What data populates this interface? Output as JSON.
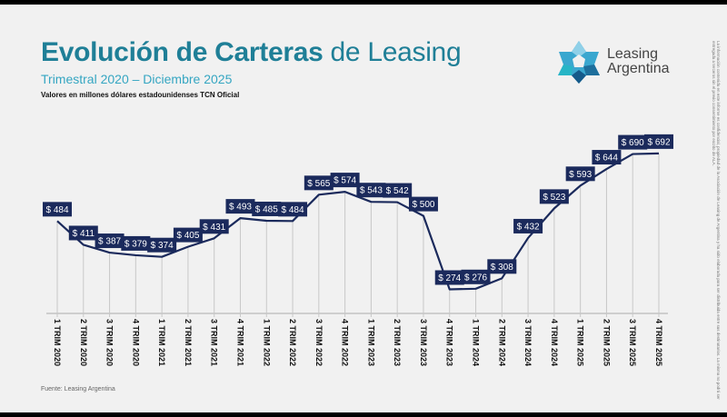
{
  "header": {
    "title_bold": "Evolución de Carteras",
    "title_light": "de Leasing",
    "subtitle": "Trimestral 2020 – Diciembre 2025",
    "units": "Valores en millones dólares estadounidenses TCN Oficial"
  },
  "logo": {
    "line1": "Leasing",
    "line2": "Argentina"
  },
  "source": "Fuente: Leasing Argentina",
  "disclaimer": "La información contenida en este informe es confidencial, propiedad de la Asociación de Leasing de Argentina y ha sido elaborada para ser distribuida entre sus destinatarios. La misma no podrá ser entregada a terceros sin el previo consentimiento por escrito de ALA.",
  "colors": {
    "line": "#1b2a5c",
    "label_bg": "#1b2a5c",
    "title": "#1f7f97",
    "subtitle": "#35a6c2"
  },
  "chart_data": {
    "type": "line",
    "title": "Evolución de Carteras de Leasing",
    "ylabel": "",
    "xlabel": "",
    "value_prefix": "$ ",
    "categories": [
      "1 TRIM 2020",
      "2 TRIM 2020",
      "3 TRIM 2020",
      "4 TRIM 2020",
      "1 TRIM 2021",
      "2 TRIM 2021",
      "3 TRIM 2021",
      "4 TRIM 2021",
      "1 TRIM 2022",
      "2 TRIM 2022",
      "3 TRIM 2022",
      "4 TRIM 2022",
      "1 TRIM 2023",
      "2 TRIM 2023",
      "3 TRIM 2023",
      "4 TRIM 2023",
      "1 TRIM 2024",
      "2 TRIM 2024",
      "3 TRIM 2024",
      "4 TRIM 2024",
      "1 TRIM 2025",
      "2 TRIM 2025",
      "3 TRIM 2025",
      "4 TRIM 2025"
    ],
    "values": [
      484,
      411,
      387,
      379,
      374,
      405,
      431,
      493,
      485,
      484,
      565,
      574,
      543,
      542,
      500,
      274,
      276,
      308,
      432,
      523,
      593,
      644,
      690,
      692
    ],
    "ylim": [
      200,
      700
    ],
    "grid": false,
    "legend": "none"
  }
}
